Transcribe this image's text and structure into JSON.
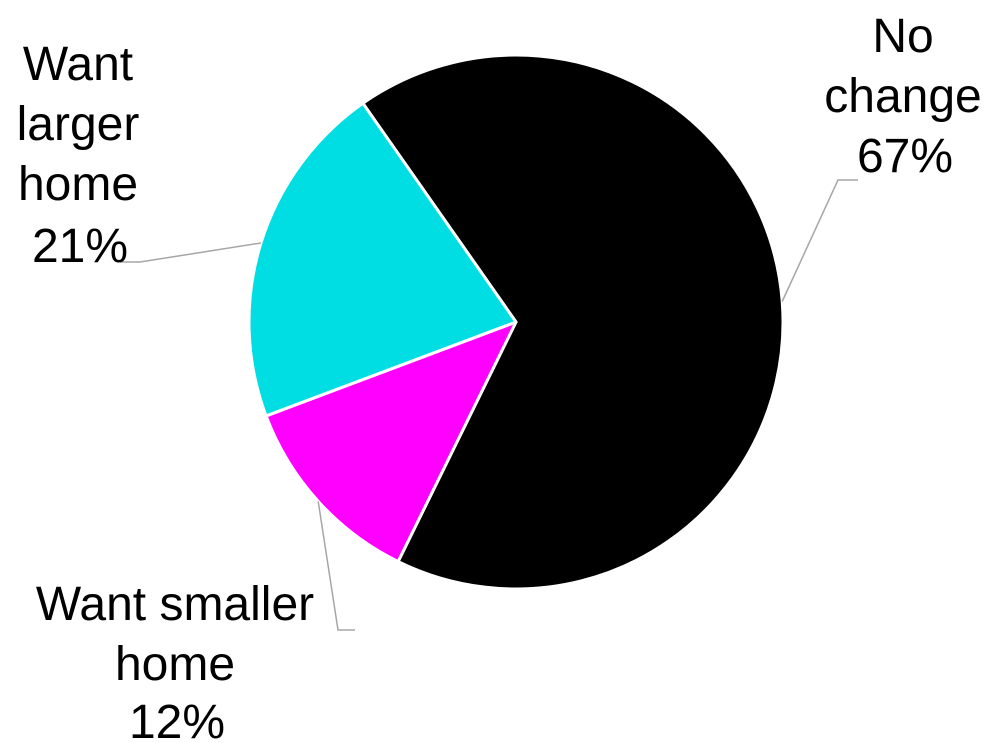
{
  "chart_data": {
    "type": "pie",
    "title": "",
    "start_angle_deg": -35,
    "direction": "clockwise",
    "slices": [
      {
        "label_lines": [
          "No",
          "change",
          "67%"
        ],
        "value": 67,
        "color": "#000000"
      },
      {
        "label_lines": [
          "Want smaller",
          "home",
          "12%"
        ],
        "value": 12,
        "color": "#ff00ff"
      },
      {
        "label_lines": [
          "Want",
          "larger",
          "home",
          "21%"
        ],
        "value": 21,
        "color": "#00dde3"
      }
    ],
    "legend": "none",
    "label_placement": "outside-with-leader-lines"
  }
}
